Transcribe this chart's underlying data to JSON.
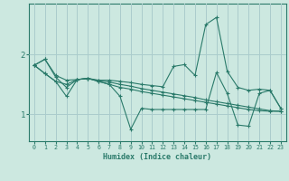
{
  "xlabel": "Humidex (Indice chaleur)",
  "bg_color": "#cce8e0",
  "grid_color": "#aacccc",
  "line_color": "#2a7a6a",
  "xlim": [
    -0.5,
    23.5
  ],
  "ylim": [
    0.55,
    2.85
  ],
  "yticks": [
    1,
    2
  ],
  "xticks": [
    0,
    1,
    2,
    3,
    4,
    5,
    6,
    7,
    8,
    9,
    10,
    11,
    12,
    13,
    14,
    15,
    16,
    17,
    18,
    19,
    20,
    21,
    22,
    23
  ],
  "series": [
    [
      1.82,
      1.92,
      1.65,
      1.57,
      1.58,
      1.6,
      1.57,
      1.57,
      1.55,
      1.53,
      1.5,
      1.48,
      1.46,
      1.8,
      1.83,
      1.65,
      2.5,
      2.62,
      1.72,
      1.45,
      1.4,
      1.42,
      1.4,
      1.1
    ],
    [
      1.82,
      1.92,
      1.62,
      1.45,
      1.58,
      1.6,
      1.55,
      1.5,
      1.3,
      0.75,
      1.1,
      1.08,
      1.08,
      1.08,
      1.08,
      1.08,
      1.08,
      1.7,
      1.35,
      0.82,
      0.8,
      1.35,
      1.4,
      1.1
    ],
    [
      1.82,
      1.68,
      1.55,
      1.5,
      1.58,
      1.6,
      1.56,
      1.54,
      1.5,
      1.47,
      1.43,
      1.4,
      1.37,
      1.34,
      1.31,
      1.28,
      1.24,
      1.21,
      1.18,
      1.15,
      1.12,
      1.09,
      1.06,
      1.05
    ],
    [
      1.82,
      1.68,
      1.55,
      1.3,
      1.58,
      1.6,
      1.55,
      1.5,
      1.45,
      1.42,
      1.38,
      1.35,
      1.32,
      1.29,
      1.26,
      1.23,
      1.2,
      1.17,
      1.14,
      1.11,
      1.08,
      1.06,
      1.05,
      1.05
    ]
  ]
}
